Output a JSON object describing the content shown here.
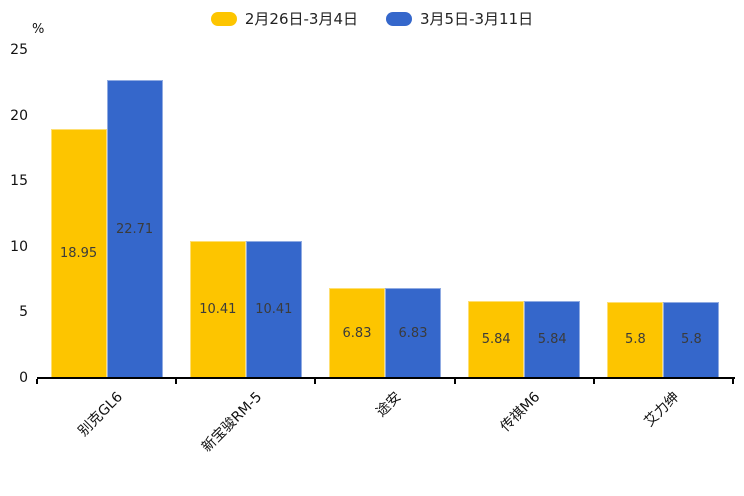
{
  "chart_data": {
    "type": "bar",
    "title": "",
    "categories": [
      "别克GL6",
      "新宝骏RM-5",
      "途安",
      "传祺M6",
      "艾力绅"
    ],
    "series": [
      {
        "name": "2月26日-3月4日",
        "color": "#FDC500",
        "values": [
          18.95,
          10.41,
          6.83,
          5.84,
          5.8
        ]
      },
      {
        "name": "3月5日-3月11日",
        "color": "#3567CB",
        "values": [
          22.71,
          10.41,
          6.83,
          5.84,
          5.8
        ]
      }
    ],
    "value_labels": [
      "18.95",
      "22.71",
      "10.41",
      "10.41",
      "6.83",
      "6.83",
      "5.84",
      "5.84",
      "5.8",
      "5.8"
    ],
    "xlabel": "",
    "ylabel": "%",
    "yticks": [
      "0",
      "5",
      "10",
      "15",
      "20",
      "25"
    ],
    "ylim": [
      0,
      25
    ],
    "grid": false,
    "legend_position": "top",
    "value_label_color": "#3b3b3b",
    "axis_color": "#000000",
    "background_color": "#ffffff"
  }
}
